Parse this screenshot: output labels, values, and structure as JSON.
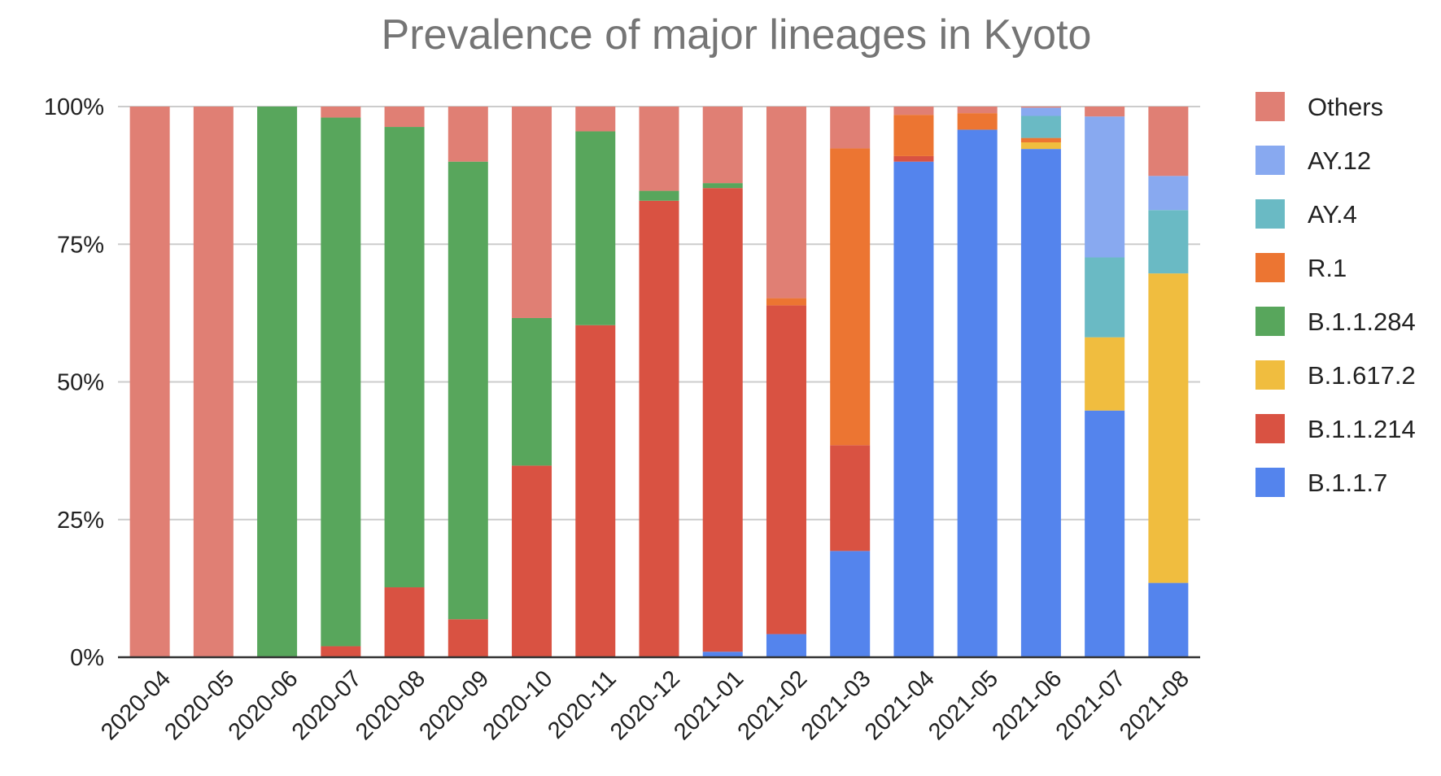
{
  "chart_data": {
    "type": "bar",
    "stacked": true,
    "percent": true,
    "title": "Prevalence of major lineages in Kyoto",
    "xlabel": "",
    "ylabel": "",
    "ylim": [
      0,
      100
    ],
    "yticks": [
      "0%",
      "25%",
      "50%",
      "75%",
      "100%"
    ],
    "grid": true,
    "legend_position": "right",
    "categories": [
      "2020-04",
      "2020-05",
      "2020-06",
      "2020-07",
      "2020-08",
      "2020-09",
      "2020-10",
      "2020-11",
      "2020-12",
      "2021-01",
      "2021-02",
      "2021-03",
      "2021-04",
      "2021-05",
      "2021-06",
      "2021-07",
      "2021-08"
    ],
    "series": [
      {
        "name": "B.1.1.7",
        "color": "#5484ed",
        "values": [
          0,
          0,
          0,
          0,
          0,
          0,
          0,
          0,
          0,
          1,
          4.2,
          19.3,
          90,
          95.8,
          92.3,
          44.8,
          13.5
        ]
      },
      {
        "name": "B.1.1.214",
        "color": "#d95242",
        "values": [
          0,
          0,
          0,
          2,
          12.7,
          6.9,
          34.8,
          60.3,
          82.9,
          84.2,
          59.7,
          19.2,
          1,
          0,
          0,
          0,
          0
        ]
      },
      {
        "name": "B.1.617.2",
        "color": "#f0bd3f",
        "values": [
          0,
          0,
          0,
          0,
          0,
          0,
          0,
          0,
          0,
          0,
          0,
          0,
          0,
          0,
          1.2,
          13.3,
          56.2
        ]
      },
      {
        "name": "B.1.1.284",
        "color": "#58a65c",
        "values": [
          0,
          0,
          100,
          96,
          83.6,
          83.1,
          26.8,
          35.2,
          1.8,
          0.9,
          0,
          0,
          0,
          0,
          0,
          0,
          0
        ]
      },
      {
        "name": "R.1",
        "color": "#ec7532",
        "values": [
          0,
          0,
          0,
          0,
          0,
          0,
          0,
          0,
          0,
          0,
          1.3,
          53.9,
          7.5,
          3,
          0.8,
          0,
          0
        ]
      },
      {
        "name": "AY.4",
        "color": "#6abac4",
        "values": [
          0,
          0,
          0,
          0,
          0,
          0,
          0,
          0,
          0,
          0,
          0,
          0,
          0,
          0,
          4,
          14.5,
          11.5
        ]
      },
      {
        "name": "AY.12",
        "color": "#88a9f0",
        "values": [
          0,
          0,
          0,
          0,
          0,
          0,
          0,
          0,
          0,
          0,
          0,
          0,
          0,
          0,
          1.5,
          25.6,
          6.2
        ]
      },
      {
        "name": "Others",
        "color": "#e07f74",
        "values": [
          100,
          100,
          0,
          2,
          3.7,
          10,
          38.4,
          4.5,
          15.3,
          13.9,
          34.8,
          7.6,
          1.5,
          1.2,
          0.2,
          1.8,
          12.6
        ]
      }
    ]
  }
}
